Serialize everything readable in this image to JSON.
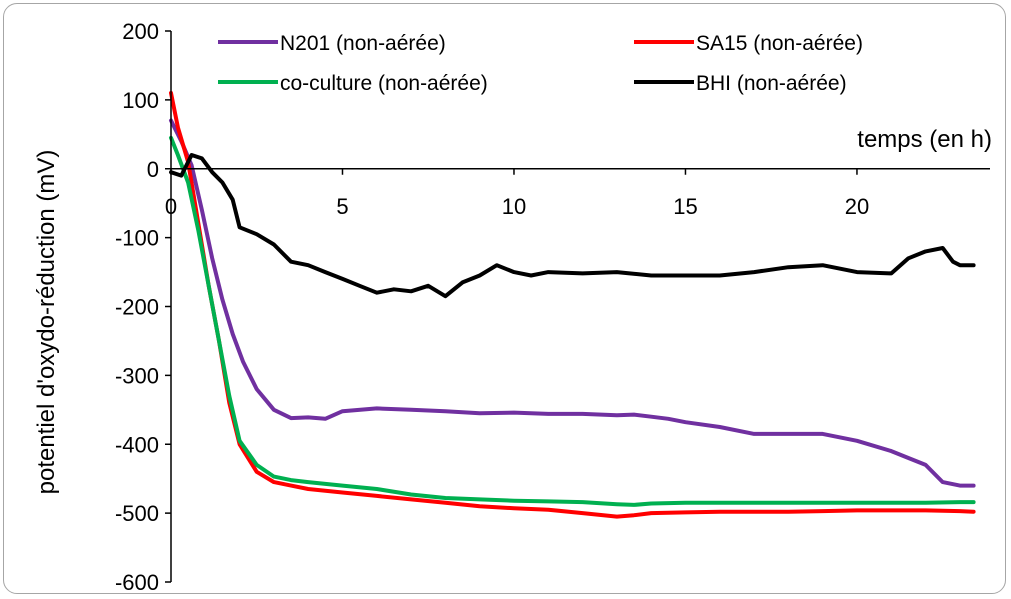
{
  "chart_data": {
    "type": "line",
    "title": "",
    "xlabel": "temps (en h)",
    "ylabel": "potentiel d'oxydo-réduction (mV)",
    "xlim": [
      0,
      23.5
    ],
    "ylim": [
      -600,
      200
    ],
    "xticks": [
      0,
      5,
      10,
      15,
      20
    ],
    "yticks": [
      200,
      100,
      0,
      -100,
      -200,
      -300,
      -400,
      -500,
      -600
    ],
    "grid": false,
    "legend_position": "top",
    "series": [
      {
        "name": "N201 (non-aérée)",
        "color": "#7030a0",
        "x": [
          0,
          0.3,
          0.6,
          0.9,
          1.2,
          1.5,
          1.8,
          2.1,
          2.5,
          3.0,
          3.5,
          4.0,
          4.5,
          5.0,
          6.0,
          7.0,
          8.0,
          9.0,
          10.0,
          11.0,
          12.0,
          13.0,
          13.5,
          14.0,
          14.5,
          15.0,
          16.0,
          17.0,
          18.0,
          19.0,
          20.0,
          21.0,
          21.5,
          22.0,
          22.5,
          23.0,
          23.4
        ],
        "y": [
          70,
          40,
          5,
          -60,
          -130,
          -190,
          -240,
          -280,
          -320,
          -350,
          -362,
          -361,
          -363,
          -352,
          -348,
          -350,
          -352,
          -355,
          -354,
          -356,
          -356,
          -358,
          -357,
          -360,
          -363,
          -368,
          -375,
          -385,
          -385,
          -385,
          -395,
          -410,
          -420,
          -430,
          -455,
          -460,
          -460
        ]
      },
      {
        "name": "SA15 (non-aérée)",
        "color": "#ff0000",
        "x": [
          0,
          0.2,
          0.5,
          0.8,
          1.1,
          1.4,
          1.7,
          2.0,
          2.5,
          3.0,
          3.5,
          4.0,
          5.0,
          6.0,
          7.0,
          8.0,
          9.0,
          10.0,
          11.0,
          12.0,
          13.0,
          13.5,
          14.0,
          15.0,
          16.0,
          17.0,
          18.0,
          19.0,
          20.0,
          21.0,
          22.0,
          23.0,
          23.4
        ],
        "y": [
          110,
          60,
          10,
          -80,
          -170,
          -250,
          -340,
          -400,
          -440,
          -455,
          -460,
          -465,
          -470,
          -475,
          -480,
          -485,
          -490,
          -493,
          -495,
          -500,
          -505,
          -503,
          -500,
          -499,
          -498,
          -498,
          -498,
          -497,
          -496,
          -496,
          -496,
          -497,
          -498
        ]
      },
      {
        "name": "co-culture (non-aérée)",
        "color": "#00b050",
        "x": [
          0,
          0.2,
          0.5,
          0.8,
          1.1,
          1.4,
          1.7,
          2.0,
          2.5,
          3.0,
          3.5,
          4.0,
          5.0,
          6.0,
          7.0,
          8.0,
          9.0,
          10.0,
          11.0,
          12.0,
          13.0,
          13.5,
          14.0,
          15.0,
          16.0,
          17.0,
          18.0,
          19.0,
          20.0,
          21.0,
          22.0,
          23.0,
          23.4
        ],
        "y": [
          45,
          20,
          -20,
          -90,
          -170,
          -250,
          -330,
          -395,
          -430,
          -447,
          -452,
          -455,
          -460,
          -465,
          -473,
          -478,
          -480,
          -482,
          -483,
          -484,
          -487,
          -488,
          -486,
          -485,
          -485,
          -485,
          -485,
          -485,
          -485,
          -485,
          -485,
          -484,
          -484
        ]
      },
      {
        "name": "BHI (non-aérée)",
        "color": "#000000",
        "x": [
          0,
          0.3,
          0.6,
          0.9,
          1.2,
          1.5,
          1.8,
          2.0,
          2.5,
          3.0,
          3.5,
          4.0,
          4.5,
          5.0,
          5.5,
          6.0,
          6.5,
          7.0,
          7.5,
          8.0,
          8.5,
          9.0,
          9.5,
          10.0,
          10.5,
          11.0,
          12.0,
          13.0,
          14.0,
          15.0,
          16.0,
          17.0,
          18.0,
          19.0,
          20.0,
          21.0,
          21.5,
          22.0,
          22.5,
          22.8,
          23.0,
          23.4
        ],
        "y": [
          -5,
          -10,
          20,
          15,
          -5,
          -20,
          -45,
          -85,
          -95,
          -110,
          -135,
          -140,
          -150,
          -160,
          -170,
          -180,
          -175,
          -178,
          -170,
          -185,
          -165,
          -155,
          -140,
          -150,
          -155,
          -150,
          -152,
          -150,
          -155,
          -155,
          -155,
          -150,
          -143,
          -140,
          -150,
          -152,
          -130,
          -120,
          -115,
          -135,
          -140,
          -140
        ]
      }
    ]
  }
}
